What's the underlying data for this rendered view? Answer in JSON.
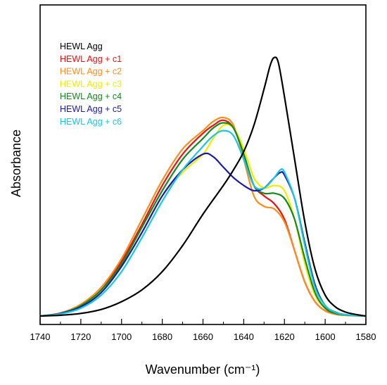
{
  "chart_data": {
    "type": "line",
    "title": "",
    "xlabel": "Wavenumber (cm⁻¹)",
    "ylabel": "Absorbance",
    "xlim": [
      1740,
      1580
    ],
    "xticks": [
      1740,
      1720,
      1700,
      1680,
      1660,
      1640,
      1620,
      1600,
      1580
    ],
    "ylim": [
      -0.05,
      1.05
    ],
    "y_ticks_labeled": false,
    "grid": false,
    "legend_position": "top-left",
    "series": [
      {
        "name": "HEWL Agg",
        "color": "#000000",
        "x": [
          1740,
          1730,
          1720,
          1710,
          1700,
          1690,
          1680,
          1670,
          1660,
          1650,
          1645,
          1640,
          1635,
          1630,
          1627,
          1625,
          1623,
          1620,
          1615,
          1610,
          1605,
          1600,
          1595,
          1590,
          1585,
          1580
        ],
        "y": [
          0.0,
          0.003,
          0.01,
          0.025,
          0.055,
          0.1,
          0.17,
          0.27,
          0.39,
          0.5,
          0.56,
          0.63,
          0.73,
          0.87,
          0.96,
          0.99,
          0.97,
          0.84,
          0.6,
          0.36,
          0.18,
          0.08,
          0.035,
          0.015,
          0.006,
          0.0
        ]
      },
      {
        "name": "HEWL Agg + c1",
        "color": "#ee1111",
        "x": [
          1740,
          1730,
          1720,
          1710,
          1700,
          1690,
          1680,
          1670,
          1660,
          1655,
          1650,
          1645,
          1640,
          1635,
          1630,
          1625,
          1620,
          1615,
          1610,
          1605,
          1600,
          1595,
          1590,
          1580
        ],
        "y": [
          0.0,
          0.01,
          0.04,
          0.1,
          0.21,
          0.35,
          0.5,
          0.62,
          0.7,
          0.73,
          0.75,
          0.72,
          0.62,
          0.5,
          0.46,
          0.43,
          0.37,
          0.25,
          0.13,
          0.055,
          0.02,
          0.007,
          0.003,
          0.0
        ]
      },
      {
        "name": "HEWL Agg + c2",
        "color": "#ff8c1a",
        "x": [
          1740,
          1730,
          1720,
          1710,
          1700,
          1690,
          1680,
          1670,
          1660,
          1655,
          1650,
          1645,
          1640,
          1635,
          1630,
          1625,
          1620,
          1615,
          1610,
          1605,
          1600,
          1595,
          1590,
          1580
        ],
        "y": [
          0.0,
          0.012,
          0.045,
          0.11,
          0.22,
          0.37,
          0.52,
          0.64,
          0.71,
          0.745,
          0.76,
          0.73,
          0.6,
          0.46,
          0.42,
          0.41,
          0.36,
          0.25,
          0.13,
          0.055,
          0.02,
          0.007,
          0.003,
          0.0
        ]
      },
      {
        "name": "HEWL Agg + c3",
        "color": "#f2ea00",
        "x": [
          1740,
          1730,
          1720,
          1710,
          1700,
          1690,
          1680,
          1670,
          1660,
          1655,
          1650,
          1645,
          1640,
          1635,
          1630,
          1625,
          1620,
          1615,
          1610,
          1605,
          1600,
          1595,
          1590,
          1580
        ],
        "y": [
          0.0,
          0.01,
          0.04,
          0.09,
          0.19,
          0.32,
          0.46,
          0.55,
          0.62,
          0.68,
          0.73,
          0.72,
          0.64,
          0.53,
          0.49,
          0.5,
          0.48,
          0.37,
          0.2,
          0.08,
          0.03,
          0.01,
          0.004,
          0.0
        ]
      },
      {
        "name": "HEWL Agg + c4",
        "color": "#138a1e",
        "x": [
          1740,
          1730,
          1720,
          1710,
          1700,
          1690,
          1680,
          1670,
          1660,
          1655,
          1650,
          1645,
          1640,
          1635,
          1630,
          1625,
          1620,
          1615,
          1610,
          1605,
          1600,
          1595,
          1590,
          1580
        ],
        "y": [
          0.0,
          0.01,
          0.04,
          0.1,
          0.2,
          0.34,
          0.48,
          0.6,
          0.68,
          0.72,
          0.74,
          0.72,
          0.62,
          0.5,
          0.47,
          0.47,
          0.45,
          0.37,
          0.22,
          0.09,
          0.03,
          0.01,
          0.004,
          0.0
        ]
      },
      {
        "name": "HEWL Agg + c5",
        "color": "#1a1aa6",
        "x": [
          1740,
          1730,
          1720,
          1710,
          1700,
          1690,
          1680,
          1670,
          1660,
          1655,
          1650,
          1645,
          1640,
          1635,
          1630,
          1625,
          1622,
          1620,
          1615,
          1610,
          1605,
          1600,
          1595,
          1590,
          1580
        ],
        "y": [
          0.0,
          0.01,
          0.035,
          0.09,
          0.19,
          0.32,
          0.46,
          0.56,
          0.62,
          0.61,
          0.57,
          0.53,
          0.5,
          0.48,
          0.49,
          0.53,
          0.55,
          0.54,
          0.45,
          0.28,
          0.12,
          0.04,
          0.015,
          0.005,
          0.0
        ]
      },
      {
        "name": "HEWL Agg + c6",
        "color": "#16c8e6",
        "x": [
          1740,
          1730,
          1720,
          1710,
          1700,
          1690,
          1680,
          1670,
          1660,
          1655,
          1650,
          1645,
          1640,
          1635,
          1630,
          1625,
          1622,
          1620,
          1615,
          1610,
          1605,
          1600,
          1595,
          1590,
          1580
        ],
        "y": [
          0.0,
          0.008,
          0.03,
          0.08,
          0.17,
          0.3,
          0.44,
          0.56,
          0.65,
          0.69,
          0.71,
          0.69,
          0.6,
          0.5,
          0.49,
          0.53,
          0.56,
          0.55,
          0.45,
          0.27,
          0.11,
          0.04,
          0.014,
          0.005,
          0.0
        ]
      }
    ]
  }
}
